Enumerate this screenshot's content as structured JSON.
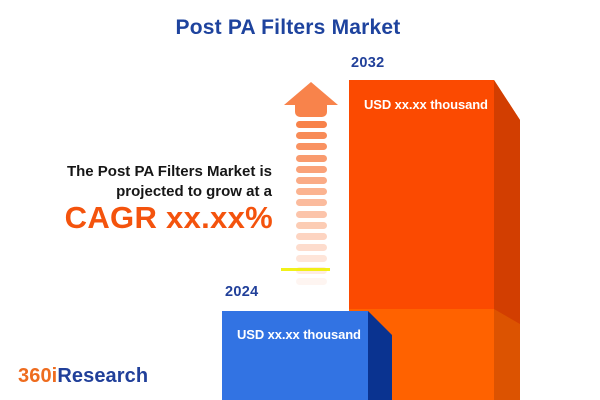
{
  "title": "Post PA Filters Market",
  "summary": {
    "line1": "The Post PA Filters Market is",
    "line2": "projected to grow at a",
    "cagr": "CAGR xx.xx%"
  },
  "chart_data": {
    "type": "bar",
    "categories": [
      "2024",
      "2032"
    ],
    "values": [
      null,
      null
    ],
    "value_labels": [
      "USD xx.xx thousand",
      "USD xx.xx thousand"
    ],
    "title": "Post PA Filters Market",
    "xlabel": "",
    "ylabel": "",
    "legend_position": "none",
    "grid": false,
    "notes": "Actual values shown as placeholder text 'xx.xx' in the image; 2032 bar drawn roughly 3.6x taller than 2024 bar"
  },
  "bars": {
    "b2024": {
      "year": "2024",
      "value_label": "USD xx.xx thousand",
      "front_color": "#3273E3",
      "side_color": "#0A3390"
    },
    "b2032": {
      "year": "2032",
      "value_label": "USD xx.xx thousand",
      "front_color_upper": "#FB4A01",
      "front_color_lower": "#FF6200",
      "side_color_upper": "#D23E01",
      "side_color_lower": "#DC5301"
    }
  },
  "branding": {
    "prefix": "360i",
    "suffix": "Research",
    "prefix_color": "#EE6C1F",
    "suffix_color": "#21409A"
  },
  "colors": {
    "background": "#FFFFFF",
    "title_navy": "#1E439E",
    "year_navy": "#21409A",
    "summary_text": "#161616",
    "cagr_orange": "#F4530D",
    "arrow_orange": "#F8834B",
    "accent_yellow": "#F0F000"
  },
  "decor": {
    "arrow_dash_count": 15
  }
}
